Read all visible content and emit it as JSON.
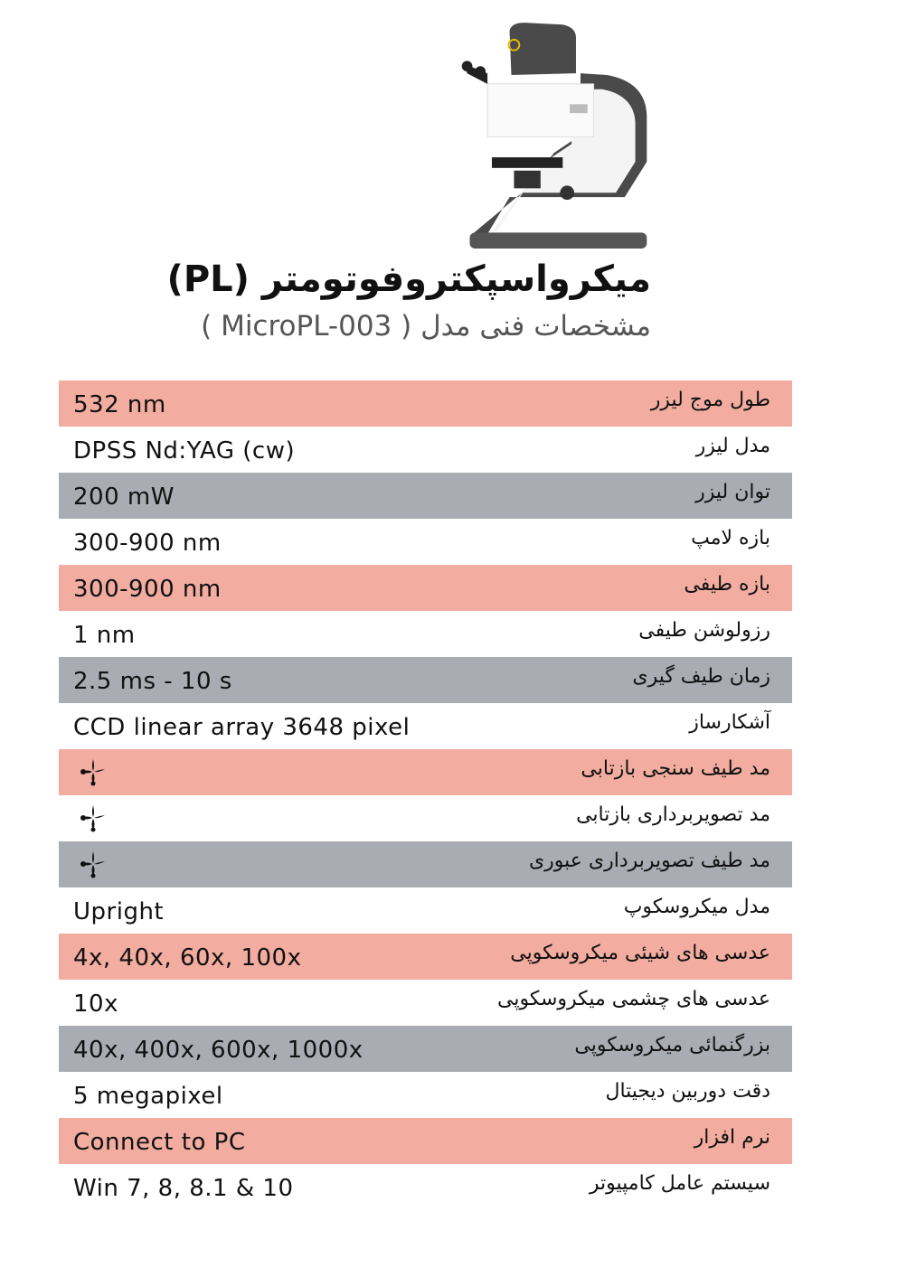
{
  "header": {
    "title": "میکرواسپکتروفوتومتر (PL)",
    "subtitle_prefix": "مشخصات فنی  مدل",
    "subtitle_model": "( MicroPL-003 )"
  },
  "colors": {
    "pink": "#f2ada0",
    "gray": "#a9adb3",
    "white": "#ffffff"
  },
  "specs": [
    {
      "label": "طول موج لیزر",
      "value": "532 nm",
      "style": "pink"
    },
    {
      "label": "مدل لیزر",
      "value": "DPSS Nd:YAG (cw)",
      "style": "white"
    },
    {
      "label": "توان لیزر",
      "value": "200 mW",
      "style": "gray"
    },
    {
      "label": "بازه لامپ",
      "value": "300-900 nm",
      "style": "white"
    },
    {
      "label": "بازه طیفی",
      "value": "300-900 nm",
      "style": "pink"
    },
    {
      "label": "رزولوشن طیفی",
      "value": "1 nm",
      "style": "white"
    },
    {
      "label": "زمان طیف گیری",
      "value": "2.5 ms - 10 s",
      "style": "gray"
    },
    {
      "label": "آشکارساز",
      "value": "CCD linear array 3648 pixel",
      "style": "white"
    },
    {
      "label": "مد  طیف سنجی بازتابی",
      "value": null,
      "icon": "check-flourish-icon",
      "style": "pink"
    },
    {
      "label": "مد  تصویربرداری بازتابی",
      "value": null,
      "icon": "check-flourish-icon",
      "style": "white"
    },
    {
      "label": "مد  طیف تصویربرداری عبوری",
      "value": null,
      "icon": "check-flourish-icon",
      "style": "gray"
    },
    {
      "label": "مدل میکروسکوپ",
      "value": "Upright",
      "style": "white"
    },
    {
      "label": "عدسی های شیئی میکروسکوپی",
      "value": "4x, 40x, 60x, 100x",
      "style": "pink"
    },
    {
      "label": "عدسی های چشمی میکروسکوپی",
      "value": "10x",
      "style": "white"
    },
    {
      "label": "بزرگنمائی میکروسکوپی",
      "value": "40x, 400x, 600x, 1000x",
      "style": "gray"
    },
    {
      "label": "دقت دوربین دیجیتال",
      "value": "5 megapixel",
      "style": "white"
    },
    {
      "label": "نرم افزار",
      "value": "Connect to PC",
      "style": "pink"
    },
    {
      "label": "سیستم عامل کامپیوتر",
      "value": "Win 7, 8, 8.1 & 10",
      "style": "white"
    }
  ]
}
